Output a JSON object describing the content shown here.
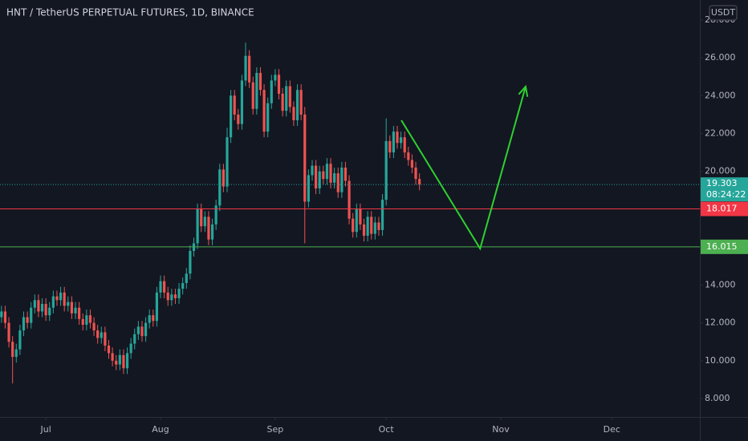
{
  "chart_data": {
    "type": "candlestick",
    "title": "HNT / TetherUS PERPETUAL FUTURES, 1D, BINANCE",
    "currency": "USDT",
    "up_color": "#26a69a",
    "down_color": "#ef5350",
    "xlim": [
      -0.4,
      188.8
    ],
    "xticks": [
      {
        "value": 12,
        "label": "Jul"
      },
      {
        "value": 43,
        "label": "Aug"
      },
      {
        "value": 74,
        "label": "Sep"
      },
      {
        "value": 104,
        "label": "Oct"
      },
      {
        "value": 135,
        "label": "Nov"
      },
      {
        "value": 165,
        "label": "Dec"
      }
    ],
    "ylim": [
      7.03,
      29.05
    ],
    "yticks": [
      {
        "value": 8,
        "label": "8.000"
      },
      {
        "value": 10,
        "label": "10.000"
      },
      {
        "value": 12,
        "label": "12.000"
      },
      {
        "value": 14,
        "label": "14.000"
      },
      {
        "value": 16,
        "label": "16.000"
      },
      {
        "value": 18,
        "label": "18.000"
      },
      {
        "value": 20,
        "label": "20.000"
      },
      {
        "value": 22,
        "label": "22.000"
      },
      {
        "value": 24,
        "label": "24.000"
      },
      {
        "value": 26,
        "label": "26.000"
      },
      {
        "value": 28,
        "label": "28.000"
      }
    ],
    "open": [
      12.3,
      12.6,
      12.0,
      11.0,
      10.2,
      10.6,
      11.6,
      12.3,
      12.0,
      12.8,
      13.2,
      12.6,
      13.0,
      12.4,
      12.8,
      13.4,
      13.2,
      13.6,
      12.9,
      13.1,
      12.5,
      12.8,
      12.2,
      11.9,
      12.4,
      12.0,
      11.6,
      11.2,
      11.5,
      10.8,
      10.4,
      10.0,
      9.8,
      10.3,
      9.6,
      10.4,
      10.9,
      11.4,
      11.8,
      11.3,
      12.0,
      12.4,
      12.1,
      13.6,
      14.2,
      13.6,
      13.2,
      13.5,
      13.3,
      13.8,
      14.1,
      14.6,
      15.8,
      16.2,
      18.0,
      17.1,
      17.6,
      16.4,
      17.2,
      18.2,
      20.1,
      19.2,
      21.8,
      24.0,
      23.0,
      22.5,
      24.8,
      26.1,
      24.7,
      23.3,
      25.2,
      24.3,
      22.1,
      23.6,
      24.8,
      25.1,
      24.1,
      23.2,
      24.5,
      23.4,
      22.7,
      24.3,
      23.0,
      18.4,
      19.8,
      20.3,
      19.1,
      20.0,
      19.6,
      20.4,
      19.4,
      19.9,
      18.9,
      20.2,
      19.5,
      17.5,
      16.8,
      18.0,
      17.2,
      16.6,
      17.6,
      16.7,
      17.3,
      16.9,
      18.5,
      21.6,
      21.0,
      22.1,
      21.5,
      21.8,
      21.0,
      20.6,
      20.2,
      19.6
    ],
    "high": [
      12.9,
      12.9,
      12.3,
      11.3,
      10.9,
      11.9,
      12.6,
      12.6,
      13.1,
      13.5,
      13.5,
      13.3,
      13.3,
      13.1,
      13.7,
      13.7,
      13.9,
      13.9,
      13.4,
      13.4,
      13.1,
      13.1,
      12.5,
      12.7,
      12.7,
      12.3,
      11.9,
      11.8,
      11.8,
      11.1,
      10.7,
      10.3,
      10.6,
      10.6,
      10.7,
      11.2,
      11.7,
      12.1,
      12.1,
      12.3,
      12.7,
      12.7,
      13.9,
      14.5,
      14.5,
      13.9,
      13.8,
      13.8,
      14.1,
      14.4,
      14.9,
      16.1,
      16.5,
      18.3,
      18.3,
      17.9,
      17.9,
      17.5,
      18.5,
      20.4,
      20.4,
      22.3,
      24.3,
      24.3,
      23.3,
      25.1,
      26.8,
      26.4,
      25.0,
      25.5,
      25.5,
      24.6,
      23.9,
      25.1,
      25.4,
      25.4,
      24.4,
      24.8,
      24.8,
      23.7,
      24.6,
      24.6,
      23.4,
      20.1,
      20.6,
      20.6,
      20.3,
      20.3,
      20.7,
      20.7,
      20.2,
      20.2,
      20.5,
      20.5,
      19.8,
      17.8,
      18.3,
      18.3,
      17.5,
      17.9,
      17.9,
      17.6,
      17.6,
      18.8,
      22.8,
      21.9,
      22.4,
      22.4,
      22.1,
      22.1,
      21.3,
      20.9,
      20.5,
      19.9
    ],
    "low": [
      12.0,
      11.7,
      10.7,
      8.8,
      9.9,
      10.3,
      11.3,
      11.7,
      11.7,
      12.5,
      12.3,
      12.3,
      12.1,
      12.1,
      12.5,
      12.9,
      12.9,
      12.6,
      12.6,
      12.2,
      12.2,
      11.9,
      11.6,
      11.6,
      11.7,
      11.3,
      10.9,
      10.9,
      10.5,
      10.1,
      9.7,
      9.5,
      9.5,
      9.3,
      9.3,
      10.1,
      10.6,
      11.1,
      11.0,
      11.0,
      11.7,
      11.8,
      11.8,
      13.3,
      13.3,
      12.9,
      12.9,
      13.0,
      13.0,
      13.5,
      13.8,
      14.3,
      15.5,
      15.9,
      16.8,
      16.8,
      16.1,
      16.1,
      16.9,
      17.9,
      18.9,
      18.9,
      21.5,
      22.7,
      22.2,
      22.2,
      24.5,
      24.4,
      23.0,
      23.0,
      24.0,
      21.8,
      21.8,
      23.3,
      24.5,
      23.8,
      22.9,
      22.9,
      23.1,
      22.4,
      22.4,
      22.7,
      16.2,
      18.1,
      19.5,
      18.8,
      18.8,
      19.3,
      19.3,
      19.1,
      19.1,
      18.6,
      18.6,
      19.2,
      17.2,
      16.5,
      16.5,
      16.9,
      16.3,
      16.3,
      16.4,
      16.4,
      16.6,
      16.6,
      18.2,
      20.7,
      20.7,
      21.2,
      21.2,
      20.7,
      20.3,
      19.9,
      19.3,
      19.0
    ],
    "close": [
      12.6,
      12.0,
      11.0,
      10.2,
      10.6,
      11.6,
      12.3,
      12.0,
      12.8,
      13.2,
      12.6,
      13.0,
      12.4,
      12.8,
      13.4,
      13.2,
      13.6,
      12.9,
      13.1,
      12.5,
      12.8,
      12.2,
      11.9,
      12.4,
      12.0,
      11.6,
      11.2,
      11.5,
      10.8,
      10.4,
      10.0,
      9.8,
      10.3,
      9.6,
      10.4,
      10.9,
      11.4,
      11.8,
      11.3,
      12.0,
      12.4,
      12.1,
      13.6,
      14.2,
      13.6,
      13.2,
      13.5,
      13.3,
      13.8,
      14.1,
      14.6,
      15.8,
      16.2,
      18.0,
      17.1,
      17.6,
      16.4,
      17.2,
      18.2,
      20.1,
      19.2,
      21.8,
      24.0,
      23.0,
      22.5,
      24.8,
      26.1,
      24.7,
      23.3,
      25.2,
      24.3,
      22.1,
      23.6,
      24.8,
      25.1,
      24.1,
      23.2,
      24.5,
      23.4,
      22.7,
      24.3,
      23.0,
      18.4,
      19.8,
      20.3,
      19.1,
      20.0,
      19.6,
      20.4,
      19.4,
      19.9,
      18.9,
      20.2,
      19.5,
      17.5,
      16.8,
      18.0,
      17.2,
      16.6,
      17.6,
      16.7,
      17.3,
      16.9,
      18.5,
      21.6,
      21.0,
      22.1,
      21.5,
      21.8,
      21.0,
      20.6,
      20.2,
      19.6,
      19.3
    ],
    "current_price": {
      "value": 19.303,
      "countdown": "08:24:22",
      "color": "#26a69a"
    },
    "price_lines": [
      {
        "value": 18.017,
        "color": "#f23645"
      },
      {
        "value": 16.015,
        "color": "#4caf50"
      }
    ],
    "drawing": {
      "color": "#2fd12f",
      "x": [
        108.1,
        129.4,
        141.7
      ],
      "y": [
        22.7,
        15.92,
        24.48
      ]
    }
  }
}
